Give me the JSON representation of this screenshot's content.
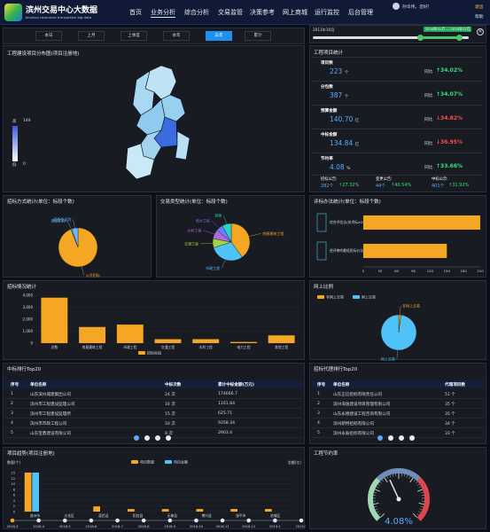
{
  "header": {
    "app_title": "滨州交易中心大数据",
    "app_subtitle": "binzhou resources transaction big data",
    "nav": [
      "首页",
      "业务分析",
      "综合分析",
      "交易监管",
      "决策参考",
      "网上商城",
      "运行监控",
      "后台管理"
    ],
    "active_nav": "业务分析",
    "user_greeting": "孙华伟，您好!",
    "logout": "退出",
    "help": "帮助"
  },
  "period_tabs": [
    "本日",
    "上月",
    "上季度",
    "本年",
    "去年",
    "累计"
  ],
  "active_period": "去年",
  "timeline": {
    "start": "2011年10月",
    "range_label": "2016年01月 — 2018年12月",
    "start_fraction": 0.69,
    "end_fraction": 0.94
  },
  "map_panel": {
    "title": "工程建设项目分布图(项目注册地)",
    "legend_high": "高",
    "legend_max": "149",
    "legend_low": "低",
    "legend_min": "0"
  },
  "kpi_panel": {
    "title": "工程项目统计",
    "rows": [
      {
        "label": "项目数",
        "value": "223",
        "unit": "个",
        "delta_label": "同比",
        "delta": "34.02%",
        "trend": "up"
      },
      {
        "label": "分包数",
        "value": "387",
        "unit": "个",
        "delta_label": "同比",
        "delta": "34.07%",
        "trend": "up"
      },
      {
        "label": "预算金额",
        "value": "140.70",
        "unit": "亿",
        "delta_label": "同比",
        "delta": "34.82%",
        "trend": "down"
      },
      {
        "label": "中标金额",
        "value": "134.84",
        "unit": "亿",
        "delta_label": "同比",
        "delta": "36.95%",
        "trend": "down"
      },
      {
        "label": "节约率",
        "value": "4.08",
        "unit": "%",
        "delta_label": "同比",
        "delta": "33.66%",
        "trend": "up"
      }
    ],
    "announcements": [
      {
        "label": "招标公告:",
        "value": "282个",
        "delta": "27.32%",
        "trend": "up"
      },
      {
        "label": "变更公告:",
        "value": "44个",
        "delta": "40.54%",
        "trend": "up"
      },
      {
        "label": "中标公示:",
        "value": "401个",
        "delta": "31.92%",
        "trend": "up"
      }
    ]
  },
  "tender_method": {
    "title": "招标方式统计(单位：标段个数)",
    "slices": [
      {
        "name": "公开招标",
        "value": 94,
        "color": "#f5a623"
      },
      {
        "name": "邀请招标",
        "value": 1,
        "color": "#4fc3f7"
      },
      {
        "name": "竞争性谈判",
        "value": 5,
        "color": "#6fb6ff"
      }
    ]
  },
  "trade_type": {
    "title": "交易类型统计(单位：标段个数)",
    "slices": [
      {
        "name": "房屋建筑工程",
        "value": 40,
        "color": "#f5a623"
      },
      {
        "name": "市政工程",
        "value": 30,
        "color": "#4fc3f7"
      },
      {
        "name": "交通工程",
        "value": 8,
        "color": "#a3d444"
      },
      {
        "name": "水利工程",
        "value": 8,
        "color": "#b06ad9"
      },
      {
        "name": "电力工程",
        "value": 6,
        "color": "#6f7cff"
      },
      {
        "name": "其他",
        "value": 8,
        "color": "#2ad4c6"
      }
    ]
  },
  "eval_method": {
    "title": "评标办法统计(单位：标段个数)",
    "categories": [
      "综合评估法(技术标≥20)",
      "经评审的最低投标价法"
    ],
    "values": [
      210,
      150
    ],
    "xticks": [
      "0",
      "30",
      "60",
      "90",
      "120",
      "150",
      "180",
      "210"
    ],
    "bar_color": "#f5a623"
  },
  "tender_status": {
    "title": "招标情况统计",
    "chart_data": {
      "type": "bar",
      "categories": [
        "总数",
        "房屋建筑工程",
        "市政工程",
        "交通工程",
        "水利工程",
        "电力工程",
        "其他工程"
      ],
      "values": [
        3800,
        1350,
        1550,
        330,
        330,
        100,
        650
      ],
      "ylim": [
        0,
        4000
      ],
      "yticks": [
        "0",
        "1,000",
        "2,000",
        "3,000",
        "4,000"
      ],
      "legend": "招标标段",
      "color": "#f5a623"
    }
  },
  "online_ratio": {
    "title": "网上比例",
    "legend": [
      "非网上交易",
      "网上交易"
    ],
    "slices": [
      {
        "name": "非网上交易",
        "value": 2,
        "color": "#f5a623"
      },
      {
        "name": "网上交易",
        "value": 98,
        "color": "#4fc3f7"
      }
    ],
    "slice_labels": [
      "非网上交易",
      "网上交易"
    ]
  },
  "bid_winner_table": {
    "title": "中标排行Top20",
    "headers": [
      "序号",
      "单位名称",
      "中标次数",
      "累计中标金额(万元)"
    ],
    "rows": [
      [
        "1",
        "山东滨州城建集团公司",
        "24 次",
        "174666.7"
      ],
      [
        "2",
        "滨州市工程建设监理公司",
        "16 次",
        "1161.84"
      ],
      [
        "3",
        "滨州市工程建设监理所",
        "15 次",
        "625.71"
      ],
      [
        "4",
        "滨州市市政工程公司",
        "10 次",
        "9358.34"
      ],
      [
        "5",
        "山东宝鼎建设有限公司",
        "8 次",
        "2903.4"
      ]
    ]
  },
  "agency_table": {
    "title": "招标代理排行Top20",
    "headers": [
      "序号",
      "单位名称",
      "代理项目数"
    ],
    "rows": [
      [
        "1",
        "山东正信招标有限责任公司",
        "51 个"
      ],
      [
        "2",
        "滨州海逸建设项目管理有限公司",
        "35 个"
      ],
      [
        "3",
        "山东永德建设工程咨询有限公司",
        "35 个"
      ],
      [
        "4",
        "滨州新特招标有限公司",
        "34 个"
      ],
      [
        "5",
        "滨州永泰招标有限公司",
        "33 个"
      ]
    ]
  },
  "project_trend": {
    "title": "项目趋势(项目注册地)",
    "y_left_label": "数量(个)",
    "y_right_label": "金额(亿)",
    "legend": [
      "项目数量",
      "项目金额"
    ],
    "yticks": [
      "0",
      "2",
      "4",
      "6",
      "8",
      "10",
      "12",
      "15"
    ],
    "chart_data": {
      "type": "bar",
      "categories": [
        "滨州市",
        "沾化区",
        "惠民县",
        "阳信县",
        "无棣县",
        "博兴县",
        "邹平市",
        "滨城区"
      ],
      "series": [
        {
          "name": "项目数量",
          "values": [
            15,
            0,
            2,
            1,
            1,
            1,
            1,
            1
          ],
          "color": "#f5a623"
        },
        {
          "name": "项目金额",
          "values": [
            15,
            0,
            0,
            0,
            0,
            0,
            0,
            0
          ],
          "color": "#4fc3f7"
        }
      ]
    },
    "timeline_labels": [
      "2018-3",
      "2018-4",
      "2018-5",
      "2018-6",
      "2018-7",
      "2018-8",
      "2018-9",
      "2018-10",
      "2018-11",
      "2018-12",
      "2019-1",
      "2019-2"
    ]
  },
  "savings_gauge": {
    "title": "工程节约率",
    "value": 4.08,
    "value_label": "4.08%"
  }
}
